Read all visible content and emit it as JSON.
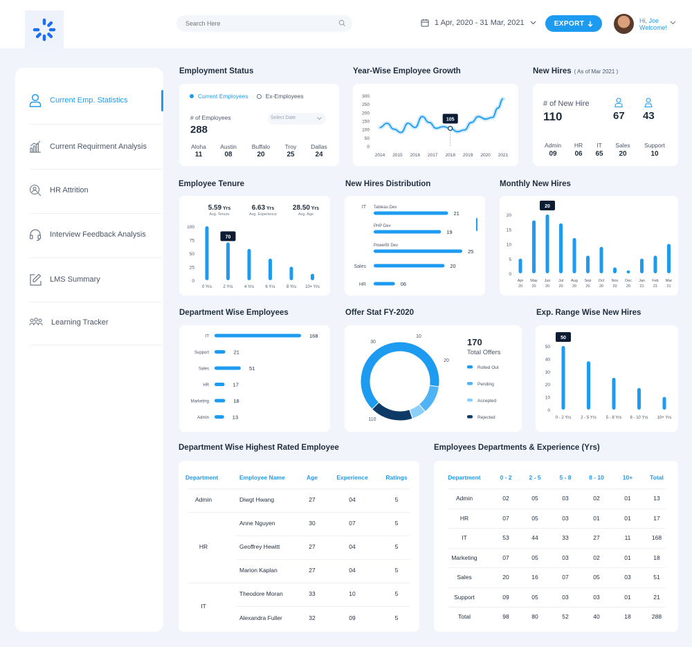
{
  "header": {
    "search_placeholder": "Search Here",
    "date_range": "1 Apr, 2020 - 31 Mar, 2021",
    "export_label": "EXPORT",
    "greet_line1": "Hi, Joe",
    "greet_line2": "Welcome!"
  },
  "sidebar": {
    "items": [
      {
        "label": "Current Emp. Statistics",
        "icon": "user-icon"
      },
      {
        "label": "Current Requirment Analysis",
        "icon": "bar-chart-icon"
      },
      {
        "label": "HR Attrition",
        "icon": "user-search-icon"
      },
      {
        "label": "Interview Feedback Analysis",
        "icon": "headset-icon"
      },
      {
        "label": "LMS Summary",
        "icon": "edit-icon"
      },
      {
        "label": "Learning Tracker",
        "icon": "team-icon"
      }
    ]
  },
  "employment_status": {
    "title": "Employment Status",
    "legend_current": "Current Employees",
    "legend_ex": "Ex-Employees",
    "count_label": "# of Employees",
    "count": "288",
    "select_placeholder": "Select Date",
    "cities": [
      {
        "name": "Aloha",
        "value": "11"
      },
      {
        "name": "Austin",
        "value": "08"
      },
      {
        "name": "Buffalo",
        "value": "20"
      },
      {
        "name": "Troy",
        "value": "25"
      },
      {
        "name": "Dallas",
        "value": "24"
      }
    ]
  },
  "new_hires": {
    "title": "New Hires",
    "subtitle": "( As of Mar 2021 )",
    "count_label": "# of New Hire",
    "count": "110",
    "male": "67",
    "female": "43",
    "depts": [
      {
        "name": "Admin",
        "value": "09"
      },
      {
        "name": "HR",
        "value": "06"
      },
      {
        "name": "IT",
        "value": "65"
      },
      {
        "name": "Sales",
        "value": "20"
      },
      {
        "name": "Support",
        "value": "10"
      }
    ]
  },
  "colors": {
    "accent": "#1d9bf0",
    "dark": "#0d3b66",
    "mid": "#4fb3f5",
    "light": "#8ad0fb",
    "text": "#1f2d3d"
  },
  "chart_data": [
    {
      "id": "growth",
      "type": "line",
      "title": "Year-Wise Employee Growth",
      "x": [
        2014,
        2015,
        2016,
        2017,
        2018,
        2019,
        2020,
        2021
      ],
      "y_ticks": [
        0,
        50,
        100,
        150,
        200,
        250,
        300
      ],
      "ylim": [
        0,
        300
      ],
      "series": [
        {
          "points": [
            [
              2014,
              110
            ],
            [
              2014.4,
              135
            ],
            [
              2014.8,
              100
            ],
            [
              2015.2,
              80
            ],
            [
              2015.6,
              135
            ],
            [
              2016,
              110
            ],
            [
              2016.4,
              175
            ],
            [
              2016.8,
              140
            ],
            [
              2017.2,
              105
            ],
            [
              2017.6,
              115
            ],
            [
              2018,
              105
            ],
            [
              2018.4,
              85
            ],
            [
              2018.8,
              95
            ],
            [
              2019.2,
              140
            ],
            [
              2019.6,
              175
            ],
            [
              2020,
              160
            ],
            [
              2020.4,
              170
            ],
            [
              2020.7,
              225
            ],
            [
              2021,
              280
            ]
          ]
        }
      ],
      "annotation": {
        "x": 2018,
        "y": 105,
        "label": "105"
      }
    },
    {
      "id": "tenure",
      "type": "bar",
      "title": "Employee Tenure",
      "stats": [
        {
          "value": "5.59",
          "unit": "Yrs",
          "label": "Avg. Tenure"
        },
        {
          "value": "6.63",
          "unit": "Yrs",
          "label": "Avg. Experience"
        },
        {
          "value": "28.50",
          "unit": "Yrs",
          "label": "Avg. Age"
        }
      ],
      "categories": [
        "0 Yrs",
        "2 Yrs",
        "4 Yrs",
        "6 Yrs",
        "8 Yrs",
        "10+ Yrs"
      ],
      "values": [
        100,
        70,
        58,
        40,
        25,
        12
      ],
      "ylim": [
        0,
        100
      ],
      "y_ticks": [
        0,
        25,
        50,
        75,
        100
      ],
      "highlight": {
        "index": 1,
        "label": "70"
      }
    },
    {
      "id": "hires_dist",
      "type": "bar",
      "title": "New Hires Distribution",
      "groups": [
        {
          "label": "IT",
          "items": [
            {
              "label": "Tableau Dev",
              "value": 21
            },
            {
              "label": "PHP Dev",
              "value": 19
            },
            {
              "label": "PowerBI Dev",
              "value": 25
            }
          ]
        },
        {
          "label": "Sales",
          "items": [
            {
              "label": "",
              "value": 20
            }
          ]
        },
        {
          "label": "HR",
          "items": [
            {
              "label": "",
              "value": 6,
              "display": "06"
            }
          ]
        }
      ],
      "xlim": [
        0,
        25
      ]
    },
    {
      "id": "monthly",
      "type": "bar",
      "title": "Monthly New Hires",
      "categories": [
        "Apr 20",
        "May 20",
        "Jun 20",
        "Jul 20",
        "Aug 20",
        "Sep 20",
        "Oct 20",
        "Nov 20",
        "Dec 20",
        "Jan 21",
        "Feb 21",
        "Mar 21"
      ],
      "values": [
        5,
        18,
        20,
        17,
        12,
        6,
        9,
        2,
        1,
        5,
        6,
        10
      ],
      "ylim": [
        0,
        20
      ],
      "y_ticks": [
        0,
        5,
        10,
        15,
        20
      ],
      "highlight": {
        "index": 2,
        "label": "20"
      }
    },
    {
      "id": "dept_emp",
      "type": "bar",
      "title": "Department  Wise Employees",
      "categories": [
        "IT",
        "Support",
        "Sales",
        "HR",
        "Marketing",
        "Admin"
      ],
      "values": [
        168,
        21,
        51,
        17,
        18,
        13
      ],
      "xlim": [
        0,
        168
      ]
    },
    {
      "id": "offer",
      "type": "pie",
      "title": "Offer Stat FY-2020",
      "total": "170",
      "total_label": "Total Offers",
      "slices": [
        {
          "label": "Rolled Out",
          "value": 110
        },
        {
          "label": "Pending",
          "value": 20
        },
        {
          "label": "Accepted",
          "value": 10
        },
        {
          "label": "Rejected",
          "value": 30
        }
      ]
    },
    {
      "id": "exp_range",
      "type": "bar",
      "title": "Exp. Range Wise New Hires",
      "categories": [
        "0 - 2 Yrs",
        "2 - 5 Yrs",
        "5 - 8 Yrs",
        "8 - 10 Yrs",
        "10+ Yrs"
      ],
      "values": [
        50,
        38,
        25,
        17,
        10
      ],
      "ylim": [
        0,
        50
      ],
      "y_ticks": [
        0,
        10,
        20,
        30,
        40,
        50
      ],
      "highlight": {
        "index": 0,
        "label": "50"
      }
    }
  ],
  "rated": {
    "title": "Department  Wise Highest Rated Employee",
    "headers": [
      "Department",
      "Employee Name",
      "Age",
      "Experience",
      "Ratings"
    ],
    "rows": [
      {
        "dept": "Admin",
        "name": "Diwgt Hwang",
        "age": "27",
        "exp": "04",
        "rating": "5"
      },
      {
        "dept": "",
        "name": "Anne Nguyen",
        "age": "30",
        "exp": "07",
        "rating": "5"
      },
      {
        "dept": "HR",
        "name": "Geoffrey Hewitt",
        "age": "27",
        "exp": "04",
        "rating": "5"
      },
      {
        "dept": "",
        "name": "Marion Kaplan",
        "age": "27",
        "exp": "04",
        "rating": "5"
      },
      {
        "dept": "",
        "name": "Theodore Moran",
        "age": "33",
        "exp": "10",
        "rating": "5"
      },
      {
        "dept": "IT",
        "name": "Alexandra Fuller",
        "age": "32",
        "exp": "09",
        "rating": "5"
      }
    ]
  },
  "experience": {
    "title": "Employees Departments & Experience (Yrs)",
    "headers": [
      "Department",
      "0 - 2",
      "2 - 5",
      "5 - 8",
      "8 - 10",
      "10+",
      "Total"
    ],
    "rows": [
      [
        "Admin",
        "02",
        "05",
        "03",
        "02",
        "01",
        "13"
      ],
      [
        "HR",
        "07",
        "05",
        "03",
        "01",
        "01",
        "17"
      ],
      [
        "IT",
        "53",
        "44",
        "33",
        "27",
        "11",
        "168"
      ],
      [
        "Marketing",
        "07",
        "05",
        "03",
        "02",
        "01",
        "18"
      ],
      [
        "Sales",
        "20",
        "16",
        "07",
        "05",
        "03",
        "51"
      ],
      [
        "Support",
        "09",
        "05",
        "03",
        "03",
        "01",
        "21"
      ],
      [
        "Total",
        "98",
        "80",
        "52",
        "40",
        "18",
        "288"
      ]
    ]
  }
}
